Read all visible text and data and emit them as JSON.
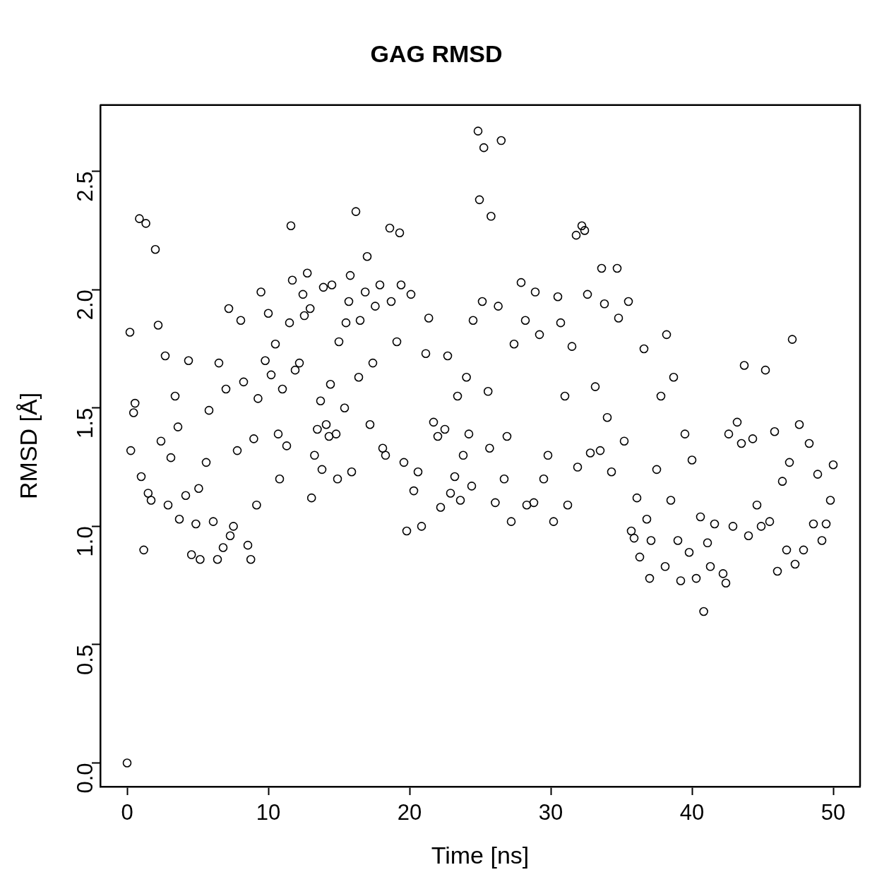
{
  "chart_data": {
    "type": "scatter",
    "title": "GAG RMSD",
    "xlabel": "Time [ns]",
    "ylabel": "RMSD [Å]",
    "marker": "circle",
    "xlim": [
      -1.9,
      51.9
    ],
    "ylim": [
      -0.1,
      2.78
    ],
    "xticks": [
      0,
      10,
      20,
      30,
      40,
      50
    ],
    "yticks": [
      {
        "value": 0,
        "label": "0.0"
      },
      0.5,
      {
        "value": 1,
        "label": "1.0"
      },
      1.5,
      {
        "value": 2,
        "label": "2.0"
      },
      2.5
    ],
    "series": [
      {
        "color": "#000000",
        "x": [
          0,
          0.2,
          0.26,
          0.46,
          0.56,
          0.87,
          1.0,
          1.18,
          1.33,
          1.49,
          1.7,
          2.0,
          2.2,
          2.4,
          2.7,
          2.9,
          3.1,
          3.4,
          3.6,
          3.7,
          4.15,
          4.35,
          4.56,
          4.87,
          5.07,
          5.17,
          5.6,
          5.8,
          6.1,
          6.4,
          6.5,
          6.8,
          7.0,
          7.2,
          7.3,
          7.53,
          7.8,
          8.05,
          8.25,
          8.55,
          8.76,
          8.97,
          9.17,
          9.27,
          9.48,
          9.78,
          10.0,
          10.2,
          10.5,
          10.7,
          10.8,
          11.0,
          11.3,
          11.5,
          11.6,
          11.7,
          11.9,
          12.2,
          12.45,
          12.55,
          12.76,
          12.96,
          13.06,
          13.27,
          13.47,
          13.7,
          13.8,
          13.9,
          14.1,
          14.3,
          14.4,
          14.5,
          14.8,
          14.9,
          15.0,
          15.4,
          15.5,
          15.7,
          15.8,
          15.9,
          16.2,
          16.4,
          16.5,
          16.86,
          17.0,
          17.2,
          17.4,
          17.57,
          17.9,
          18.1,
          18.3,
          18.6,
          18.7,
          19.1,
          19.3,
          19.4,
          19.6,
          19.8,
          20.1,
          20.3,
          20.6,
          20.85,
          21.15,
          21.36,
          21.7,
          22.0,
          22.2,
          22.5,
          22.7,
          22.9,
          23.2,
          23.4,
          23.6,
          23.8,
          24.03,
          24.2,
          24.4,
          24.5,
          24.85,
          24.95,
          25.15,
          25.26,
          25.56,
          25.67,
          25.77,
          26.07,
          26.28,
          26.49,
          26.7,
          26.9,
          27.2,
          27.4,
          27.9,
          28.2,
          28.3,
          28.8,
          28.9,
          29.2,
          29.5,
          29.8,
          30.2,
          30.5,
          30.7,
          31.0,
          31.2,
          31.5,
          31.8,
          31.9,
          32.2,
          32.4,
          32.6,
          32.8,
          33.15,
          33.5,
          33.6,
          33.8,
          34.0,
          34.3,
          34.7,
          34.8,
          35.2,
          35.5,
          35.7,
          35.9,
          36.1,
          36.3,
          36.6,
          36.8,
          37.0,
          37.1,
          37.5,
          37.8,
          38.1,
          38.2,
          38.5,
          38.7,
          39.0,
          39.2,
          39.5,
          39.8,
          40.0,
          40.3,
          40.6,
          40.83,
          41.1,
          41.3,
          41.6,
          42.2,
          42.4,
          42.6,
          42.9,
          43.2,
          43.5,
          43.7,
          44.0,
          44.3,
          44.6,
          44.9,
          45.2,
          45.5,
          45.85,
          46.05,
          46.4,
          46.7,
          46.9,
          47.1,
          47.3,
          47.6,
          47.9,
          48.3,
          48.6,
          48.9,
          49.2,
          49.5,
          49.8,
          50.0
        ],
        "values": [
          0,
          1.82,
          1.32,
          1.48,
          1.52,
          2.3,
          1.21,
          0.9,
          2.28,
          1.14,
          1.11,
          2.17,
          1.85,
          1.36,
          1.72,
          1.09,
          1.29,
          1.55,
          1.42,
          1.03,
          1.13,
          1.7,
          0.88,
          1.01,
          1.16,
          0.86,
          1.27,
          1.49,
          1.02,
          0.86,
          1.69,
          0.91,
          1.58,
          1.92,
          0.96,
          1.0,
          1.32,
          1.87,
          1.61,
          0.92,
          0.86,
          1.37,
          1.09,
          1.54,
          1.99,
          1.7,
          1.9,
          1.64,
          1.77,
          1.39,
          1.2,
          1.58,
          1.34,
          1.86,
          2.27,
          2.04,
          1.66,
          1.69,
          1.98,
          1.89,
          2.07,
          1.92,
          1.12,
          1.3,
          1.41,
          1.53,
          1.24,
          2.01,
          1.43,
          1.38,
          1.6,
          2.02,
          1.39,
          1.2,
          1.78,
          1.5,
          1.86,
          1.95,
          2.06,
          1.23,
          2.33,
          1.63,
          1.87,
          1.99,
          2.14,
          1.43,
          1.69,
          1.93,
          2.02,
          1.33,
          1.3,
          2.26,
          1.95,
          1.78,
          2.24,
          2.02,
          1.27,
          0.98,
          1.98,
          1.15,
          1.23,
          1.0,
          1.73,
          1.88,
          1.44,
          1.38,
          1.08,
          1.41,
          1.72,
          1.14,
          1.21,
          1.55,
          1.11,
          1.3,
          1.63,
          1.39,
          1.17,
          1.87,
          2.67,
          2.38,
          1.95,
          2.6,
          1.57,
          1.33,
          2.31,
          1.1,
          1.93,
          2.63,
          1.2,
          1.38,
          1.02,
          1.77,
          2.03,
          1.87,
          1.09,
          1.1,
          1.99,
          1.81,
          1.2,
          1.3,
          1.02,
          1.97,
          1.86,
          1.55,
          1.09,
          1.76,
          2.23,
          1.25,
          2.27,
          2.25,
          1.98,
          1.31,
          1.59,
          1.32,
          2.09,
          1.94,
          1.46,
          1.23,
          2.09,
          1.88,
          1.36,
          1.95,
          0.98,
          0.95,
          1.12,
          0.87,
          1.75,
          1.03,
          0.78,
          0.94,
          1.24,
          1.55,
          0.83,
          1.81,
          1.11,
          1.63,
          0.94,
          0.77,
          1.39,
          0.89,
          1.28,
          0.78,
          1.04,
          0.64,
          0.93,
          0.83,
          1.01,
          0.8,
          0.76,
          1.39,
          1.0,
          1.44,
          1.35,
          1.68,
          0.96,
          1.37,
          1.09,
          1.0,
          1.66,
          1.02,
          1.4,
          0.81,
          1.19,
          0.9,
          1.27,
          1.79,
          0.84,
          1.43,
          0.9,
          1.35,
          1.01,
          1.22,
          0.94,
          1.01,
          1.11,
          1.26
        ]
      }
    ]
  }
}
